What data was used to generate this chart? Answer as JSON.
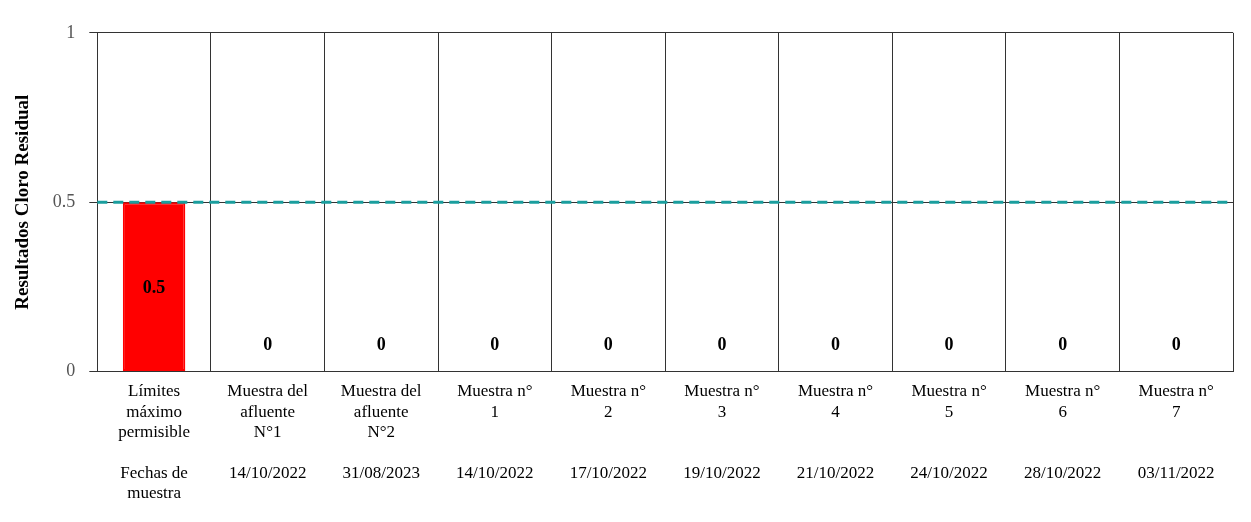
{
  "chart_data": {
    "type": "bar",
    "ylabel": "Resultados Cloro Residual",
    "categories": [
      "Límites\nmáximo\npermisible\n\nFechas de\nmuestra",
      "Muestra del\nafluente\nN°1\n\n14/10/2022",
      "Muestra del\nafluente\nN°2\n\n31/08/2023",
      "Muestra n°\n1\n\n14/10/2022",
      "Muestra n°\n2\n\n17/10/2022",
      "Muestra n°\n3\n\n19/10/2022",
      "Muestra n°\n4\n\n21/10/2022",
      "Muestra n°\n5\n\n24/10/2022",
      "Muestra n°\n6\n\n28/10/2022",
      "Muestra n°\n7\n\n03/11/2022"
    ],
    "values": [
      0.5,
      0,
      0,
      0,
      0,
      0,
      0,
      0,
      0,
      0
    ],
    "colors": [
      "#ff0000",
      "#3a5ea0",
      "#c89a10",
      "#548235",
      "#5c2d82",
      "#0a94c4",
      "#c8c400",
      "#cc2a7a",
      "#2a2ad0",
      "#c8500a"
    ],
    "data_labels": true,
    "ylim": [
      0,
      1
    ],
    "yticks": [
      0,
      0.5,
      1
    ],
    "grid": true,
    "ref_lines": [
      {
        "axis": "y",
        "value": 0.5,
        "color": "#1a9e9e",
        "line_style": "dashed"
      }
    ]
  }
}
